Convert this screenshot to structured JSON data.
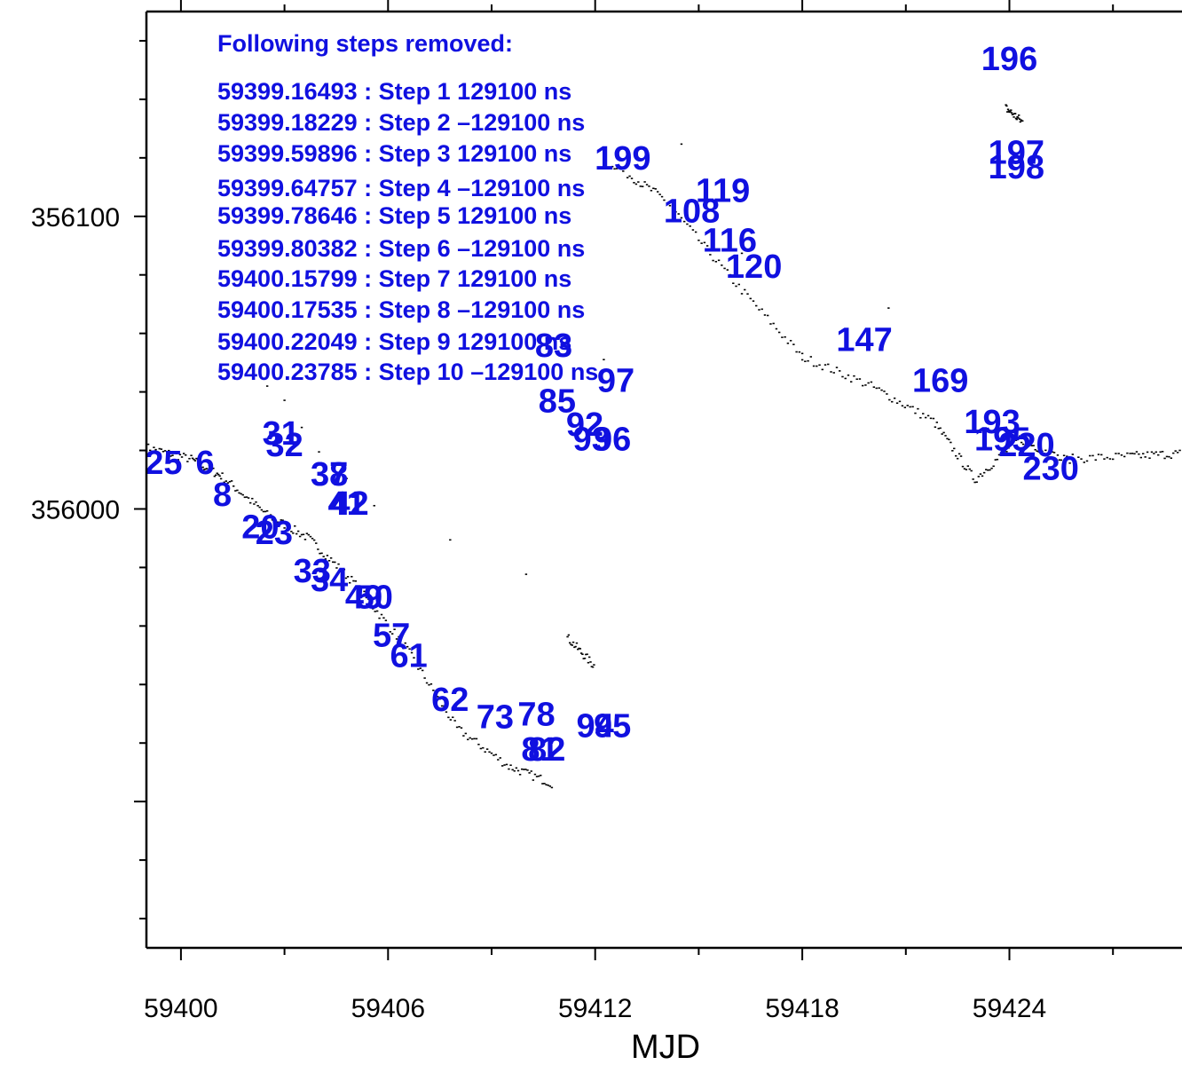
{
  "chart_data": {
    "type": "scatter",
    "title": "",
    "xlabel": "MJD",
    "ylabel": "",
    "xlim": [
      59399,
      59429
    ],
    "ylim": [
      355850,
      356170
    ],
    "xticks": [
      59400,
      59406,
      59412,
      59418,
      59424
    ],
    "xtick_labels": [
      "59400",
      "59406",
      "59412",
      "59418",
      "59424"
    ],
    "yticks": [
      356000,
      356100
    ],
    "ytick_labels": [
      "356000",
      "356100"
    ],
    "grid": false,
    "colors": {
      "points": "#000000",
      "labels": "#1010e0",
      "axes": "#000000"
    },
    "annotation": {
      "header": "Following steps removed:",
      "lines": [
        "59399.16493 : Step 1 129100 ns",
        "59399.18229 : Step 2 –129100 ns",
        "59399.59896 : Step 3 129100 ns",
        "59399.64757 : Step 4 –129100 ns",
        "59399.78646 : Step 5 129100 ns",
        "59399.80382 : Step 6 –129100 ns",
        "59400.15799 : Step 7 129100 ns",
        "59400.17535 : Step 8 –129100 ns",
        "59400.22049 : Step 9 129100 ns",
        "59400.23785 : Step 10 –129100 ns"
      ]
    },
    "series": [
      {
        "x": [
          59399,
          59400.3,
          59401.2,
          59402.5,
          59403.7,
          59405,
          59406.5,
          59408,
          59409.5,
          59410.8
        ],
        "y": [
          356021,
          356017,
          356011,
          355998,
          355990,
          355975,
          355953,
          355925,
          355912,
          355906
        ]
      },
      {
        "x": [
          59411.2,
          59412.0
        ],
        "y": [
          355956,
          355946
        ]
      },
      {
        "x": [
          59412.5,
          59414,
          59416,
          59418,
          59420,
          59421.8,
          59423,
          59424.3,
          59425.5,
          59427.5,
          59429
        ],
        "y": [
          356118,
          356106,
          356078,
          356052,
          356042,
          356030,
          356010,
          356024,
          356017,
          356018,
          356019
        ]
      },
      {
        "x": [
          59423.9,
          59424.4
        ],
        "y": [
          356137,
          356132
        ]
      },
      {
        "x": [
          59402.0,
          59403.0,
          59404.0,
          59405.6,
          59410.0,
          59414.5,
          59418.0,
          59423.0
        ],
        "y": [
          356048,
          356038,
          356020,
          356000,
          355978,
          356125,
          356052,
          356088
        ]
      }
    ],
    "point_labels": [
      {
        "text": "196",
        "x": 59424.0,
        "y": 356150
      },
      {
        "text": "197",
        "x": 59424.2,
        "y": 356118
      },
      {
        "text": "198",
        "x": 59424.2,
        "y": 356113
      },
      {
        "text": "199",
        "x": 59412.8,
        "y": 356116
      },
      {
        "text": "119",
        "x": 59415.7,
        "y": 356105
      },
      {
        "text": "108",
        "x": 59414.8,
        "y": 356098
      },
      {
        "text": "116",
        "x": 59415.9,
        "y": 356088
      },
      {
        "text": "120",
        "x": 59416.6,
        "y": 356079
      },
      {
        "text": "147",
        "x": 59419.8,
        "y": 356054
      },
      {
        "text": "169",
        "x": 59422.0,
        "y": 356040
      },
      {
        "text": "193",
        "x": 59423.5,
        "y": 356026
      },
      {
        "text": "195",
        "x": 59423.8,
        "y": 356020
      },
      {
        "text": "220",
        "x": 59424.5,
        "y": 356018
      },
      {
        "text": "230",
        "x": 59425.2,
        "y": 356010
      },
      {
        "text": "83",
        "x": 59410.8,
        "y": 356052
      },
      {
        "text": "97",
        "x": 59412.6,
        "y": 356040
      },
      {
        "text": "85",
        "x": 59410.9,
        "y": 356033
      },
      {
        "text": "92",
        "x": 59411.7,
        "y": 356025
      },
      {
        "text": "93",
        "x": 59411.9,
        "y": 356020
      },
      {
        "text": "96",
        "x": 59412.5,
        "y": 356020
      },
      {
        "text": "94",
        "x": 59412.0,
        "y": 355922
      },
      {
        "text": "95",
        "x": 59412.5,
        "y": 355922
      },
      {
        "text": "31",
        "x": 59402.9,
        "y": 356022
      },
      {
        "text": "32",
        "x": 59403.0,
        "y": 356018
      },
      {
        "text": "37",
        "x": 59404.3,
        "y": 356008
      },
      {
        "text": "38",
        "x": 59404.3,
        "y": 356008
      },
      {
        "text": "41",
        "x": 59404.8,
        "y": 355998
      },
      {
        "text": "42",
        "x": 59404.9,
        "y": 355998
      },
      {
        "text": "25",
        "x": 59399.5,
        "y": 356012
      },
      {
        "text": "6",
        "x": 59400.7,
        "y": 356012
      },
      {
        "text": "8",
        "x": 59401.2,
        "y": 356001
      },
      {
        "text": "20",
        "x": 59402.3,
        "y": 355990
      },
      {
        "text": "23",
        "x": 59402.7,
        "y": 355988
      },
      {
        "text": "33",
        "x": 59403.8,
        "y": 355975
      },
      {
        "text": "34",
        "x": 59404.3,
        "y": 355972
      },
      {
        "text": "49",
        "x": 59405.3,
        "y": 355966
      },
      {
        "text": "50",
        "x": 59405.6,
        "y": 355966
      },
      {
        "text": "57",
        "x": 59406.1,
        "y": 355953
      },
      {
        "text": "61",
        "x": 59406.6,
        "y": 355946
      },
      {
        "text": "62",
        "x": 59407.8,
        "y": 355931
      },
      {
        "text": "73",
        "x": 59409.1,
        "y": 355925
      },
      {
        "text": "78",
        "x": 59410.3,
        "y": 355926
      },
      {
        "text": "81",
        "x": 59410.4,
        "y": 355914
      },
      {
        "text": "82",
        "x": 59410.6,
        "y": 355914
      }
    ]
  }
}
